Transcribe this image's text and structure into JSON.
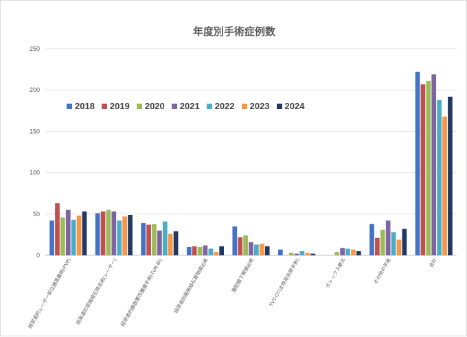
{
  "chart_data": {
    "type": "bar",
    "title": "年度別手術症例数",
    "categories": [
      "経尿道的レーザー前立腺蒸散術(PVP)",
      "経尿道的尿路結石除去術(レーザー)",
      "経尿道的膀胱悪性腫瘍手術(TUR-Bt)",
      "経尿道的膀胱結石異物摘出術",
      "腹腔鏡下腎摘出術",
      "TVT-OT(女性尿失禁手術)",
      "ボトックス療法",
      "その他の手術",
      "合計"
    ],
    "series": [
      {
        "name": "2018",
        "color": "#4472C4",
        "values": [
          42,
          51,
          39,
          10,
          35,
          7,
          0,
          38,
          222
        ]
      },
      {
        "name": "2019",
        "color": "#C0504D",
        "values": [
          63,
          53,
          37,
          11,
          22,
          0,
          0,
          21,
          207
        ]
      },
      {
        "name": "2020",
        "color": "#9BBB59",
        "values": [
          46,
          55,
          38,
          10,
          24,
          3,
          4,
          31,
          211
        ]
      },
      {
        "name": "2021",
        "color": "#8064A2",
        "values": [
          55,
          53,
          30,
          12,
          16,
          2,
          9,
          42,
          219
        ]
      },
      {
        "name": "2022",
        "color": "#4BACC6",
        "values": [
          43,
          42,
          41,
          8,
          13,
          5,
          8,
          28,
          188
        ]
      },
      {
        "name": "2023",
        "color": "#F79646",
        "values": [
          48,
          47,
          26,
          4,
          14,
          3,
          7,
          19,
          168
        ]
      },
      {
        "name": "2024",
        "color": "#1F3864",
        "values": [
          53,
          49,
          29,
          11,
          11,
          2,
          5,
          32,
          192
        ]
      }
    ],
    "ylim": [
      0,
      250
    ],
    "yticks": [
      0,
      50,
      100,
      150,
      200,
      250
    ],
    "grid": true,
    "legend_position": "top-left"
  }
}
